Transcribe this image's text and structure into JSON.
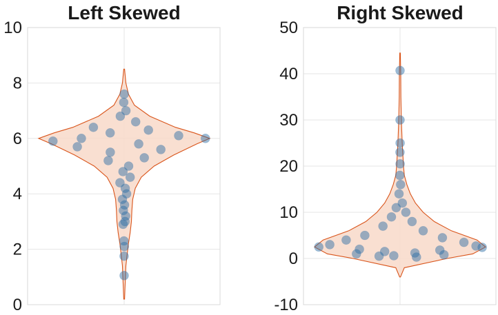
{
  "chart_data": [
    {
      "type": "violin",
      "title": "Left Skewed",
      "ylim": [
        0,
        10
      ],
      "yticks": [
        "0",
        "2",
        "4",
        "6",
        "8",
        "10"
      ],
      "grid": true,
      "color_points": "#2f6ea6",
      "color_violin_fill": "#f8d9c9",
      "color_violin_edge": "#d9541a",
      "density": [
        [
          0.2,
          0.005
        ],
        [
          0.6,
          0.01
        ],
        [
          1.0,
          0.015
        ],
        [
          1.4,
          0.02
        ],
        [
          1.8,
          0.035
        ],
        [
          2.2,
          0.05
        ],
        [
          2.6,
          0.07
        ],
        [
          3.0,
          0.085
        ],
        [
          3.4,
          0.09
        ],
        [
          3.8,
          0.1
        ],
        [
          4.2,
          0.13
        ],
        [
          4.6,
          0.2
        ],
        [
          5.0,
          0.35
        ],
        [
          5.4,
          0.58
        ],
        [
          5.8,
          0.85
        ],
        [
          6.0,
          1.0
        ],
        [
          6.2,
          0.82
        ],
        [
          6.4,
          0.6
        ],
        [
          6.8,
          0.3
        ],
        [
          7.2,
          0.12
        ],
        [
          7.6,
          0.05
        ],
        [
          8.0,
          0.02
        ],
        [
          8.5,
          0.005
        ]
      ],
      "points": [
        {
          "x": 0.02,
          "y": 1.05
        },
        {
          "x": -0.03,
          "y": 1.75
        },
        {
          "x": 0.03,
          "y": 2.1
        },
        {
          "x": -0.05,
          "y": 2.3
        },
        {
          "x": -0.15,
          "y": 2.9
        },
        {
          "x": 0.12,
          "y": 3.0
        },
        {
          "x": 0.2,
          "y": 3.2
        },
        {
          "x": -0.1,
          "y": 3.4
        },
        {
          "x": 0.05,
          "y": 3.6
        },
        {
          "x": -0.2,
          "y": 3.8
        },
        {
          "x": 0.25,
          "y": 4.0
        },
        {
          "x": 0.1,
          "y": 4.2
        },
        {
          "x": -0.3,
          "y": 4.4
        },
        {
          "x": 0.35,
          "y": 4.6
        },
        {
          "x": -0.05,
          "y": 4.8
        },
        {
          "x": 0.15,
          "y": 5.0
        },
        {
          "x": -0.4,
          "y": 5.2
        },
        {
          "x": 0.45,
          "y": 5.3
        },
        {
          "x": -0.25,
          "y": 5.5
        },
        {
          "x": 0.6,
          "y": 5.6
        },
        {
          "x": -0.7,
          "y": 5.7
        },
        {
          "x": 0.2,
          "y": 5.8
        },
        {
          "x": -0.9,
          "y": 5.9
        },
        {
          "x": 0.95,
          "y": 6.0
        },
        {
          "x": -0.5,
          "y": 6.0
        },
        {
          "x": 0.7,
          "y": 6.1
        },
        {
          "x": -0.2,
          "y": 6.2
        },
        {
          "x": 0.4,
          "y": 6.3
        },
        {
          "x": -0.6,
          "y": 6.4
        },
        {
          "x": 0.3,
          "y": 6.6
        },
        {
          "x": -0.15,
          "y": 6.8
        },
        {
          "x": 0.1,
          "y": 7.0
        },
        {
          "x": -0.05,
          "y": 7.3
        },
        {
          "x": 0.02,
          "y": 7.6
        }
      ]
    },
    {
      "type": "violin",
      "title": "Right Skewed",
      "ylim": [
        -10,
        50
      ],
      "yticks": [
        "-10",
        "0",
        "10",
        "20",
        "30",
        "40",
        "50"
      ],
      "grid": true,
      "color_points": "#2f6ea6",
      "color_violin_fill": "#f8d9c9",
      "color_violin_edge": "#d9541a",
      "density": [
        [
          -4,
          0.005
        ],
        [
          -2,
          0.05
        ],
        [
          0,
          0.55
        ],
        [
          1,
          0.85
        ],
        [
          2.5,
          1.0
        ],
        [
          4,
          0.9
        ],
        [
          6,
          0.6
        ],
        [
          8,
          0.4
        ],
        [
          10,
          0.27
        ],
        [
          12,
          0.18
        ],
        [
          14,
          0.12
        ],
        [
          16,
          0.08
        ],
        [
          18,
          0.05
        ],
        [
          20,
          0.04
        ],
        [
          25,
          0.025
        ],
        [
          30,
          0.015
        ],
        [
          35,
          0.01
        ],
        [
          40,
          0.008
        ],
        [
          44.5,
          0.003
        ]
      ],
      "points": [
        {
          "x": -0.02,
          "y": 40.7
        },
        {
          "x": 0.0,
          "y": 30.0
        },
        {
          "x": 0.02,
          "y": 25.0
        },
        {
          "x": -0.02,
          "y": 23.0
        },
        {
          "x": 0.03,
          "y": 20.5
        },
        {
          "x": -0.05,
          "y": 18.0
        },
        {
          "x": 0.08,
          "y": 16.0
        },
        {
          "x": -0.1,
          "y": 14.0
        },
        {
          "x": 0.15,
          "y": 12.0
        },
        {
          "x": -0.2,
          "y": 11.0
        },
        {
          "x": 0.25,
          "y": 10.0
        },
        {
          "x": -0.3,
          "y": 9.0
        },
        {
          "x": 0.35,
          "y": 8.0
        },
        {
          "x": -0.4,
          "y": 7.0
        },
        {
          "x": 0.45,
          "y": 6.0
        },
        {
          "x": -0.55,
          "y": 5.0
        },
        {
          "x": 0.6,
          "y": 4.5
        },
        {
          "x": -0.7,
          "y": 4.0
        },
        {
          "x": 0.8,
          "y": 3.5
        },
        {
          "x": -0.85,
          "y": 3.0
        },
        {
          "x": 0.9,
          "y": 2.7
        },
        {
          "x": -0.95,
          "y": 2.5
        },
        {
          "x": 0.97,
          "y": 2.4
        },
        {
          "x": -0.5,
          "y": 2.0
        },
        {
          "x": 0.5,
          "y": 1.8
        },
        {
          "x": -0.2,
          "y": 1.5
        },
        {
          "x": 0.2,
          "y": 1.2
        },
        {
          "x": -0.6,
          "y": 1.0
        },
        {
          "x": 0.65,
          "y": 0.8
        },
        {
          "x": -0.35,
          "y": 0.5
        },
        {
          "x": 0.3,
          "y": 0.3
        },
        {
          "x": -0.1,
          "y": 0.6
        }
      ]
    }
  ]
}
